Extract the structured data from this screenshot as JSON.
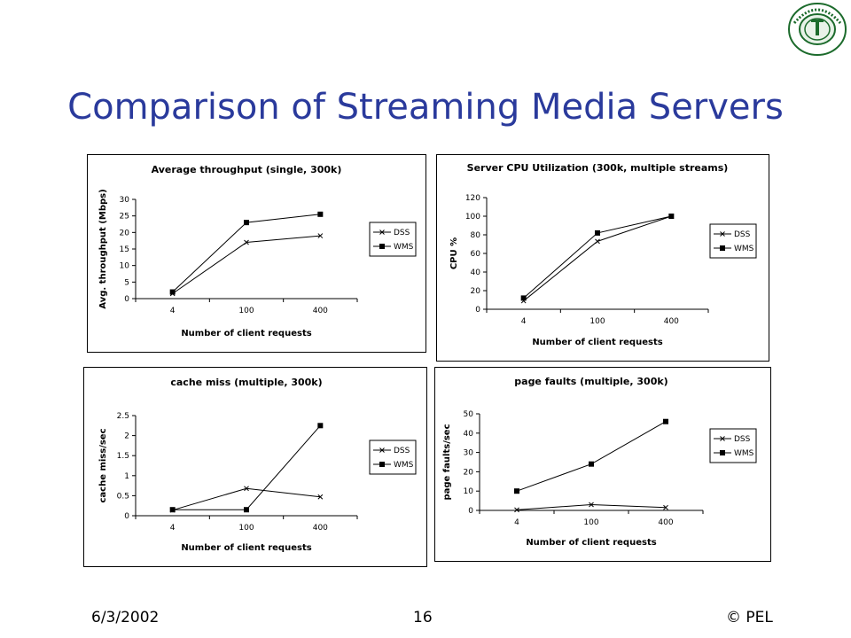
{
  "slide": {
    "title": "Comparison of Streaming Media Servers",
    "date": "6/3/2002",
    "page": "16",
    "copyright": "© PEL",
    "logo_text": "Performance Engineering Laboratory",
    "title_color": "#2a3a9c"
  },
  "chart_data": [
    {
      "type": "line",
      "title": "Average throughput (single, 300k)",
      "xlabel": "Number of client requests",
      "ylabel": "Avg. throughput (Mbps)",
      "categories": [
        "4",
        "100",
        "400"
      ],
      "ylim": [
        0,
        30
      ],
      "yticks": [
        "0",
        "5",
        "10",
        "15",
        "20",
        "25",
        "30"
      ],
      "series": [
        {
          "name": "DSS",
          "marker": "x",
          "values": [
            1.5,
            17,
            19
          ]
        },
        {
          "name": "WMS",
          "marker": "square",
          "values": [
            2,
            23,
            25.5
          ]
        }
      ],
      "legend": "right"
    },
    {
      "type": "line",
      "title": "Server CPU Utilization (300k, multiple streams)",
      "xlabel": "Number of client requests",
      "ylabel": "CPU %",
      "categories": [
        "4",
        "100",
        "400"
      ],
      "ylim": [
        0,
        120
      ],
      "yticks": [
        "0",
        "20",
        "40",
        "60",
        "80",
        "100",
        "120"
      ],
      "series": [
        {
          "name": "DSS",
          "marker": "x",
          "values": [
            9,
            73,
            100
          ]
        },
        {
          "name": "WMS",
          "marker": "square",
          "values": [
            12,
            82,
            100
          ]
        }
      ],
      "legend": "right"
    },
    {
      "type": "line",
      "title": "cache miss (multiple, 300k)",
      "xlabel": "Number of client requests",
      "ylabel": "cache miss/sec",
      "categories": [
        "4",
        "100",
        "400"
      ],
      "ylim": [
        0,
        2.5
      ],
      "yticks": [
        "0",
        "0.5",
        "1",
        "1.5",
        "2",
        "2.5"
      ],
      "series": [
        {
          "name": "DSS",
          "marker": "x",
          "values": [
            0.14,
            0.68,
            0.47
          ]
        },
        {
          "name": "WMS",
          "marker": "square",
          "values": [
            0.15,
            0.15,
            2.25
          ]
        }
      ],
      "legend": "right"
    },
    {
      "type": "line",
      "title": "page faults (multiple, 300k)",
      "xlabel": "Number of client requests",
      "ylabel": "page faults/sec",
      "categories": [
        "4",
        "100",
        "400"
      ],
      "ylim": [
        0,
        50
      ],
      "yticks": [
        "0",
        "10",
        "20",
        "30",
        "40",
        "50"
      ],
      "series": [
        {
          "name": "DSS",
          "marker": "x",
          "values": [
            0.3,
            3,
            1.5
          ]
        },
        {
          "name": "WMS",
          "marker": "square",
          "values": [
            10,
            24,
            46
          ]
        }
      ],
      "legend": "right"
    }
  ]
}
